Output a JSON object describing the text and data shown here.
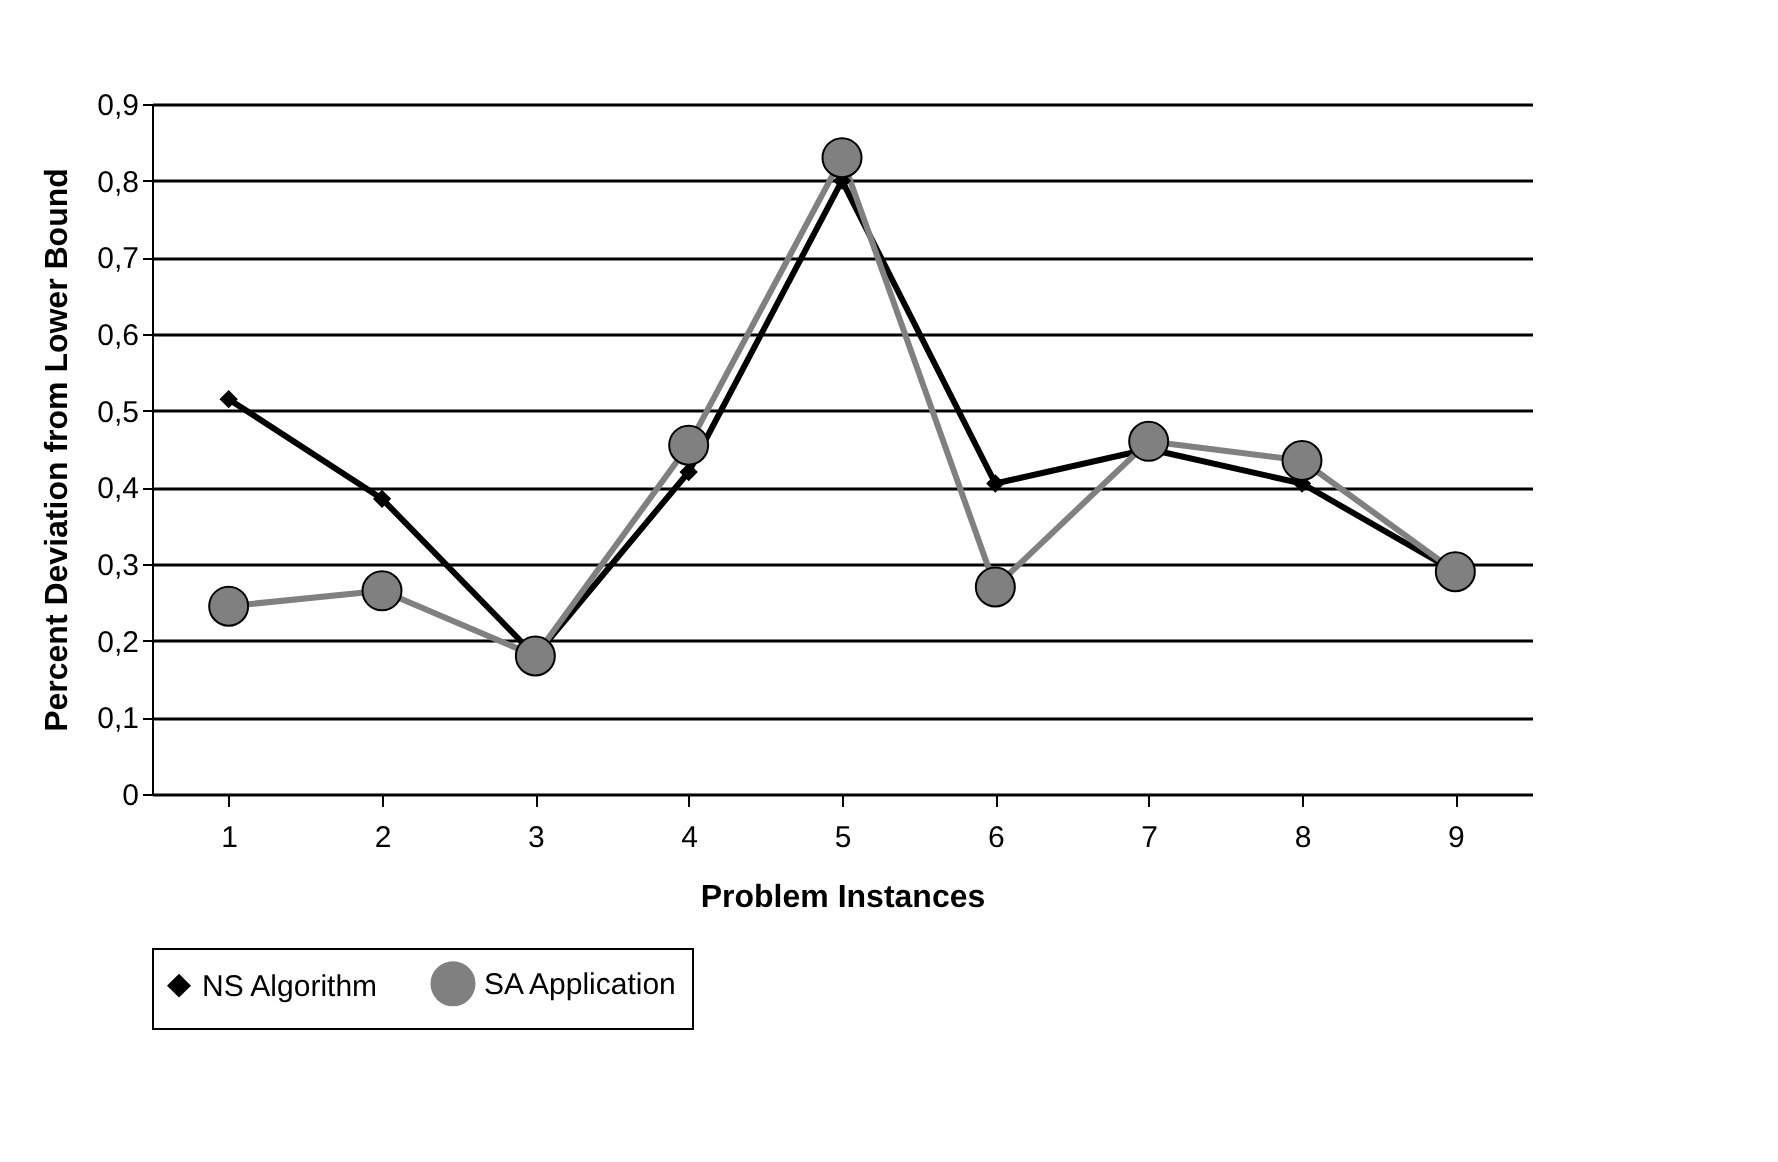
{
  "chart_data": {
    "type": "line",
    "xlabel": "Problem Instances",
    "ylabel": "Percent Deviation from Lower Bound",
    "categories": [
      "1",
      "2",
      "3",
      "4",
      "5",
      "6",
      "7",
      "8",
      "9"
    ],
    "series": [
      {
        "name": "NS Algorithm",
        "color": "#000000",
        "marker": "diamond",
        "values": [
          0.515,
          0.385,
          0.18,
          0.42,
          0.8,
          0.405,
          0.45,
          0.405,
          0.29
        ]
      },
      {
        "name": "SA Application",
        "color": "#808080",
        "marker": "circle",
        "values": [
          0.245,
          0.265,
          0.18,
          0.455,
          0.83,
          0.27,
          0.46,
          0.435,
          0.29
        ]
      }
    ],
    "ylim": [
      0,
      0.9
    ],
    "yticks": [
      0,
      {
        "value": 0.1,
        "label": "0,1"
      },
      {
        "value": 0.2,
        "label": "0,2"
      },
      {
        "value": 0.3,
        "label": "0,3"
      },
      {
        "value": 0.4,
        "label": "0,4"
      },
      {
        "value": 0.5,
        "label": "0,5"
      },
      {
        "value": 0.6,
        "label": "0,6"
      },
      {
        "value": 0.7,
        "label": "0,7"
      },
      {
        "value": 0.8,
        "label": "0,8"
      },
      {
        "value": 0.9,
        "label": "0,9"
      }
    ],
    "grid": "y",
    "legend": "bottom",
    "line_style": "solid"
  }
}
